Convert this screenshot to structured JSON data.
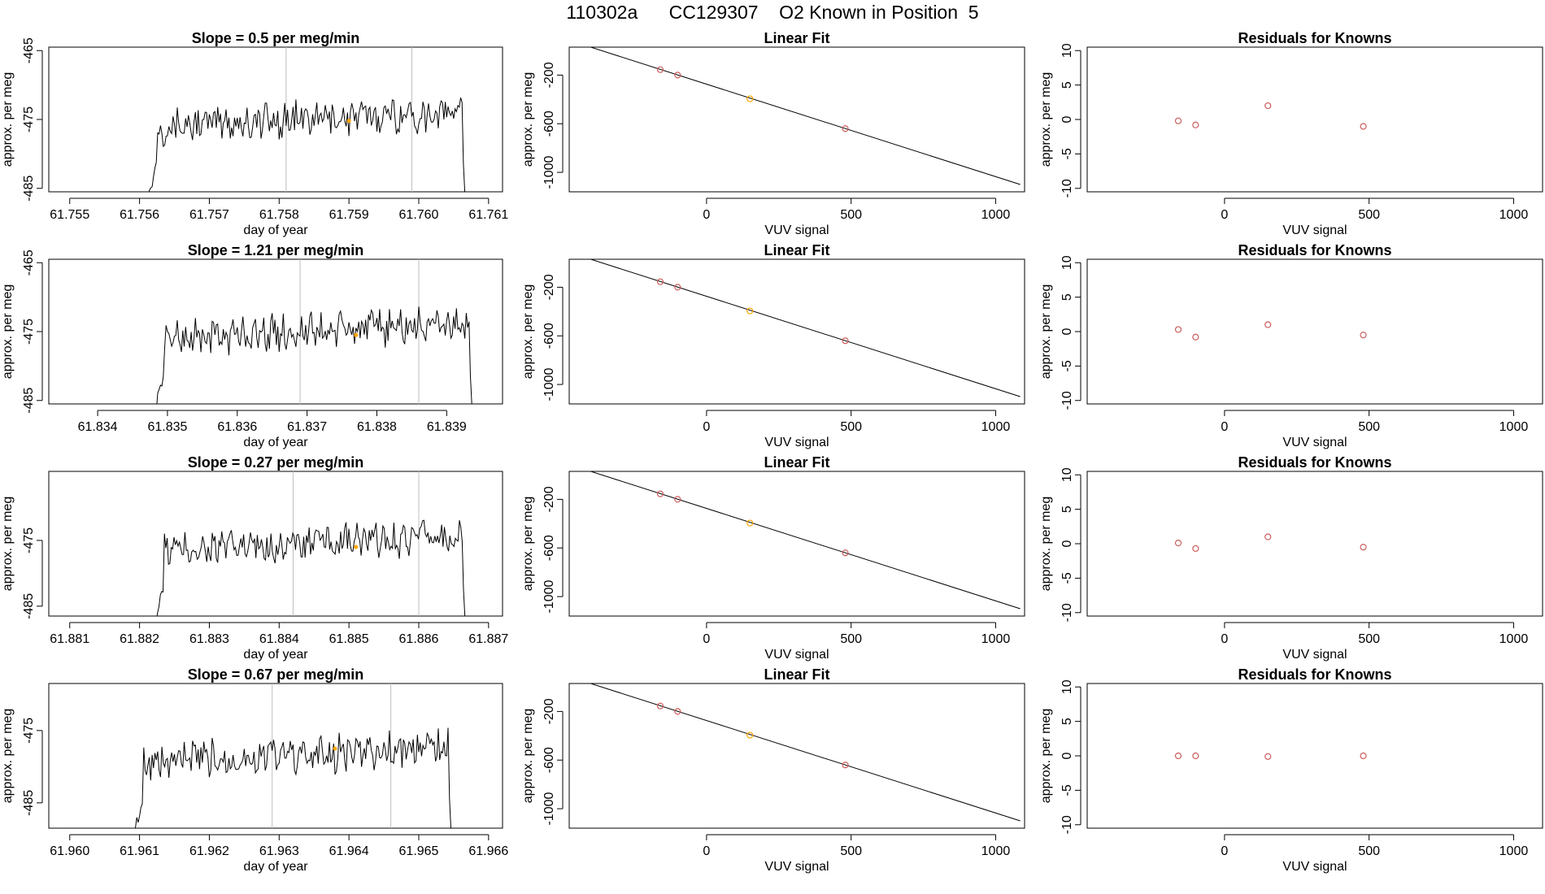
{
  "title": "110302a      CC129307    O2 Known in Position  5",
  "colors": {
    "line": "#000000",
    "known_marker": "#cd5c5c",
    "sample_marker": "#ffa500",
    "vline": "#bebebe"
  },
  "chart_data": [
    {
      "type": "line",
      "panel": "time",
      "row": 1,
      "title": "Slope =  0.5  per meg/min",
      "xlabel": "day of year",
      "ylabel": "approx. per meg",
      "xlim": [
        61.7547,
        61.7612
      ],
      "ylim": [
        -485.5,
        -464.5
      ],
      "xticks": [
        "61.755",
        "61.756",
        "61.757",
        "61.758",
        "61.759",
        "61.760",
        "61.761"
      ],
      "xtick_values": [
        61.755,
        61.756,
        61.757,
        61.758,
        61.759,
        61.76,
        61.761
      ],
      "yticks": [
        "-485",
        "-475",
        "-465"
      ],
      "ytick_values": [
        -485,
        -475,
        -465
      ],
      "vlines": [
        61.7581,
        61.7599
      ],
      "series_start": 61.7561,
      "series_end": 61.7607,
      "sample_point": [
        61.759,
        -475.2
      ]
    },
    {
      "type": "scatter",
      "panel": "fit",
      "row": 1,
      "title": "Linear Fit",
      "xlabel": "VUV signal",
      "ylabel": "approx. per meg",
      "xlim": [
        -475,
        1100
      ],
      "ylim": [
        -1160,
        30
      ],
      "xticks": [
        "0",
        "500",
        "1000"
      ],
      "xtick_values": [
        0,
        500,
        1000
      ],
      "yticks": [
        "-1000",
        "-600",
        "-200"
      ],
      "ytick_values": [
        -1000,
        -600,
        -200
      ],
      "fit_line": {
        "x": [
          -440,
          1085
        ],
        "y": [
          60,
          -1100
        ]
      },
      "points": [
        {
          "x": -160,
          "y": -155,
          "kind": "known"
        },
        {
          "x": -100,
          "y": -200,
          "kind": "known"
        },
        {
          "x": 150,
          "y": -395,
          "kind": "sample"
        },
        {
          "x": 480,
          "y": -640,
          "kind": "known"
        }
      ]
    },
    {
      "type": "scatter",
      "panel": "residuals",
      "row": 1,
      "title": "Residuals for Knowns",
      "xlabel": "VUV signal",
      "ylabel": "approx. per meg",
      "xlim": [
        -475,
        1100
      ],
      "ylim": [
        -10.5,
        10.5
      ],
      "xticks": [
        "0",
        "500",
        "1000"
      ],
      "xtick_values": [
        0,
        500,
        1000
      ],
      "yticks": [
        "-10",
        "-5",
        "0",
        "5",
        "10"
      ],
      "ytick_values": [
        -10,
        -5,
        0,
        5,
        10
      ],
      "points": [
        {
          "x": -160,
          "y": -0.2
        },
        {
          "x": -100,
          "y": -0.8
        },
        {
          "x": 150,
          "y": 2.0
        },
        {
          "x": 480,
          "y": -1.0
        }
      ]
    },
    {
      "type": "line",
      "panel": "time",
      "row": 2,
      "title": "Slope =  1.21  per meg/min",
      "xlabel": "day of year",
      "ylabel": "approx. per meg",
      "xlim": [
        61.8333,
        61.8398
      ],
      "ylim": [
        -485.5,
        -464.5
      ],
      "xticks": [
        "61.834",
        "61.835",
        "61.836",
        "61.837",
        "61.838",
        "61.839"
      ],
      "xtick_values": [
        61.834,
        61.835,
        61.836,
        61.837,
        61.838,
        61.839
      ],
      "yticks": [
        "-485",
        "-475",
        "-465"
      ],
      "ytick_values": [
        -485,
        -475,
        -465
      ],
      "vlines": [
        61.8369,
        61.8386
      ],
      "series_start": 61.8348,
      "series_end": 61.8394,
      "sample_point": [
        61.8377,
        -475.5
      ]
    },
    {
      "type": "scatter",
      "panel": "fit",
      "row": 2,
      "title": "Linear Fit",
      "xlabel": "VUV signal",
      "ylabel": "approx. per meg",
      "xlim": [
        -475,
        1100
      ],
      "ylim": [
        -1160,
        30
      ],
      "xticks": [
        "0",
        "500",
        "1000"
      ],
      "xtick_values": [
        0,
        500,
        1000
      ],
      "yticks": [
        "-1000",
        "-600",
        "-200"
      ],
      "ytick_values": [
        -1000,
        -600,
        -200
      ],
      "fit_line": {
        "x": [
          -440,
          1085
        ],
        "y": [
          60,
          -1100
        ]
      },
      "points": [
        {
          "x": -160,
          "y": -155,
          "kind": "known"
        },
        {
          "x": -100,
          "y": -200,
          "kind": "known"
        },
        {
          "x": 150,
          "y": -395,
          "kind": "sample"
        },
        {
          "x": 480,
          "y": -640,
          "kind": "known"
        }
      ]
    },
    {
      "type": "scatter",
      "panel": "residuals",
      "row": 2,
      "title": "Residuals for Knowns",
      "xlabel": "VUV signal",
      "ylabel": "approx. per meg",
      "xlim": [
        -475,
        1100
      ],
      "ylim": [
        -10.5,
        10.5
      ],
      "xticks": [
        "0",
        "500",
        "1000"
      ],
      "xtick_values": [
        0,
        500,
        1000
      ],
      "yticks": [
        "-10",
        "-5",
        "0",
        "5",
        "10"
      ],
      "ytick_values": [
        -10,
        -5,
        0,
        5,
        10
      ],
      "points": [
        {
          "x": -160,
          "y": 0.3
        },
        {
          "x": -100,
          "y": -0.8
        },
        {
          "x": 150,
          "y": 1.0
        },
        {
          "x": 480,
          "y": -0.5
        }
      ]
    },
    {
      "type": "line",
      "panel": "time",
      "row": 3,
      "title": "Slope =  0.27  per meg/min",
      "xlabel": "day of year",
      "ylabel": "approx. per meg",
      "xlim": [
        61.8807,
        61.8872
      ],
      "ylim": [
        -486.5,
        -464.5
      ],
      "xticks": [
        "61.881",
        "61.882",
        "61.883",
        "61.884",
        "61.885",
        "61.886",
        "61.887"
      ],
      "xtick_values": [
        61.881,
        61.882,
        61.883,
        61.884,
        61.885,
        61.886,
        61.887
      ],
      "yticks": [
        "-485",
        "-475"
      ],
      "ytick_values": [
        -485,
        -475
      ],
      "vlines": [
        61.8842,
        61.886
      ],
      "series_start": 61.8822,
      "series_end": 61.8867,
      "sample_point": [
        61.8851,
        -476.0
      ]
    },
    {
      "type": "scatter",
      "panel": "fit",
      "row": 3,
      "title": "Linear Fit",
      "xlabel": "VUV signal",
      "ylabel": "approx. per meg",
      "xlim": [
        -475,
        1100
      ],
      "ylim": [
        -1160,
        30
      ],
      "xticks": [
        "0",
        "500",
        "1000"
      ],
      "xtick_values": [
        0,
        500,
        1000
      ],
      "yticks": [
        "-1000",
        "-600",
        "-200"
      ],
      "ytick_values": [
        -1000,
        -600,
        -200
      ],
      "fit_line": {
        "x": [
          -440,
          1085
        ],
        "y": [
          60,
          -1100
        ]
      },
      "points": [
        {
          "x": -160,
          "y": -155,
          "kind": "known"
        },
        {
          "x": -100,
          "y": -200,
          "kind": "known"
        },
        {
          "x": 150,
          "y": -395,
          "kind": "sample"
        },
        {
          "x": 480,
          "y": -640,
          "kind": "known"
        }
      ]
    },
    {
      "type": "scatter",
      "panel": "residuals",
      "row": 3,
      "title": "Residuals for Knowns",
      "xlabel": "VUV signal",
      "ylabel": "approx. per meg",
      "xlim": [
        -475,
        1100
      ],
      "ylim": [
        -10.5,
        10.5
      ],
      "xticks": [
        "0",
        "500",
        "1000"
      ],
      "xtick_values": [
        0,
        500,
        1000
      ],
      "yticks": [
        "-10",
        "-5",
        "0",
        "5",
        "10"
      ],
      "ytick_values": [
        -10,
        -5,
        0,
        5,
        10
      ],
      "points": [
        {
          "x": -160,
          "y": 0.1
        },
        {
          "x": -100,
          "y": -0.7
        },
        {
          "x": 150,
          "y": 1.0
        },
        {
          "x": 480,
          "y": -0.5
        }
      ]
    },
    {
      "type": "line",
      "panel": "time",
      "row": 4,
      "title": "Slope =  0.67  per meg/min",
      "xlabel": "day of year",
      "ylabel": "approx. per meg",
      "xlim": [
        61.9597,
        61.9662
      ],
      "ylim": [
        -488.5,
        -468.5
      ],
      "xticks": [
        "61.960",
        "61.961",
        "61.962",
        "61.963",
        "61.964",
        "61.965",
        "61.966"
      ],
      "xtick_values": [
        61.96,
        61.961,
        61.962,
        61.963,
        61.964,
        61.965,
        61.966
      ],
      "yticks": [
        "-485",
        "-475"
      ],
      "ytick_values": [
        -485,
        -475
      ],
      "vlines": [
        61.9629,
        61.9646
      ],
      "series_start": 61.9609,
      "series_end": 61.9655,
      "sample_point": [
        61.9638,
        -477.5
      ]
    },
    {
      "type": "scatter",
      "panel": "fit",
      "row": 4,
      "title": "Linear Fit",
      "xlabel": "VUV signal",
      "ylabel": "approx. per meg",
      "xlim": [
        -475,
        1100
      ],
      "ylim": [
        -1160,
        30
      ],
      "xticks": [
        "0",
        "500",
        "1000"
      ],
      "xtick_values": [
        0,
        500,
        1000
      ],
      "yticks": [
        "-1000",
        "-600",
        "-200"
      ],
      "ytick_values": [
        -1000,
        -600,
        -200
      ],
      "fit_line": {
        "x": [
          -440,
          1085
        ],
        "y": [
          60,
          -1100
        ]
      },
      "points": [
        {
          "x": -160,
          "y": -155,
          "kind": "known"
        },
        {
          "x": -100,
          "y": -200,
          "kind": "known"
        },
        {
          "x": 150,
          "y": -395,
          "kind": "sample"
        },
        {
          "x": 480,
          "y": -640,
          "kind": "known"
        }
      ]
    },
    {
      "type": "scatter",
      "panel": "residuals",
      "row": 4,
      "title": "Residuals for Knowns",
      "xlabel": "VUV signal",
      "ylabel": "approx. per meg",
      "xlim": [
        -475,
        1100
      ],
      "ylim": [
        -10.5,
        10.5
      ],
      "xticks": [
        "0",
        "500",
        "1000"
      ],
      "xtick_values": [
        0,
        500,
        1000
      ],
      "yticks": [
        "-10",
        "-5",
        "0",
        "5",
        "10"
      ],
      "ytick_values": [
        -10,
        -5,
        0,
        5,
        10
      ],
      "points": [
        {
          "x": -160,
          "y": 0.0
        },
        {
          "x": -100,
          "y": 0.0
        },
        {
          "x": 150,
          "y": -0.1
        },
        {
          "x": 480,
          "y": 0.0
        }
      ]
    }
  ]
}
